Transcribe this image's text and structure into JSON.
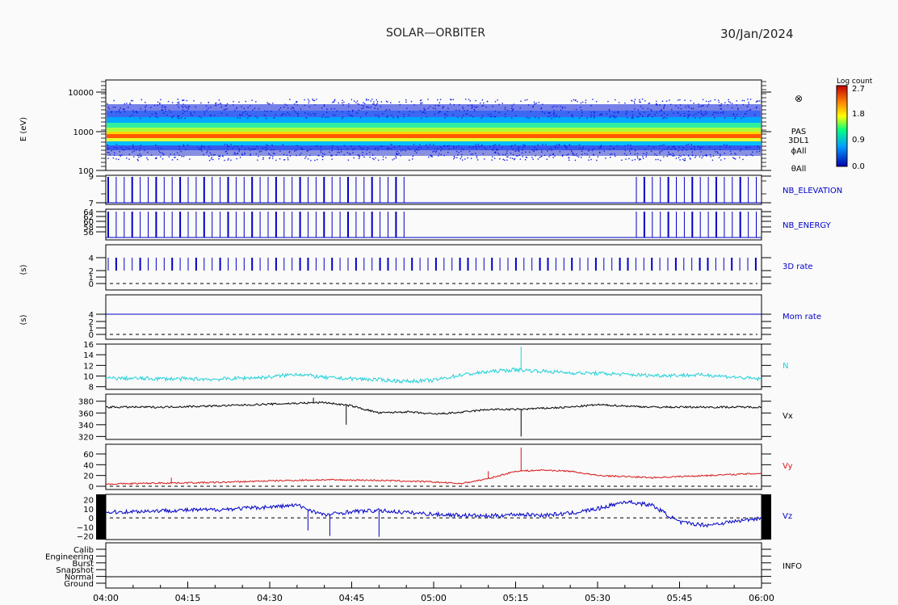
{
  "header": {
    "title": "SOLAR—ORBITER",
    "date": "30/Jan/2024"
  },
  "colors": {
    "blue": "#0000c8",
    "cyan": "#22d0d8",
    "black": "#000000",
    "red": "#d81818"
  },
  "spectrogram": {
    "ylabel": "E (eV)",
    "yticks": [
      "10000",
      "1000",
      "100"
    ],
    "labels": [
      "PAS",
      "3DL1",
      "ϕAll",
      "θAll"
    ],
    "colorbar": {
      "title": "Log count",
      "ticks": [
        "2.7",
        "1.8",
        "0.9",
        "0.0"
      ]
    }
  },
  "chart_data": {
    "type": "line",
    "x_range": [
      "04:00",
      "06:00"
    ],
    "x_ticks": [
      "04:00",
      "04:15",
      "04:30",
      "04:45",
      "05:00",
      "05:15",
      "05:30",
      "05:45",
      "06:00"
    ],
    "panels": [
      {
        "name": "NB_ELEVATION",
        "yticks": [
          "9",
          "7"
        ],
        "kind": "ticks",
        "color": "#0000c8"
      },
      {
        "name": "NB_ENERGY",
        "yticks": [
          "64",
          "62",
          "60",
          "58",
          "56"
        ],
        "kind": "ticks",
        "color": "#0000c8"
      },
      {
        "name": "3D rate",
        "ylabel": "(s)",
        "yticks": [
          "4",
          "2",
          "1",
          "0"
        ],
        "ylim": [
          0,
          4
        ],
        "kind": "ticks",
        "color": "#0000c8"
      },
      {
        "name": "Mom rate",
        "ylabel": "(s)",
        "yticks": [
          "4",
          "2",
          "1",
          "0"
        ],
        "ylim": [
          0,
          4
        ],
        "value": 4,
        "color": "#0000c8"
      },
      {
        "name": "N",
        "yticks": [
          "16",
          "14",
          "12",
          "10",
          "8"
        ],
        "ylim": [
          7.5,
          16
        ],
        "color": "#22d0d8",
        "x": [
          "04:00",
          "04:10",
          "04:20",
          "04:30",
          "04:35",
          "04:40",
          "04:50",
          "04:55",
          "05:00",
          "05:05",
          "05:10",
          "05:15",
          "05:20",
          "05:25",
          "05:30",
          "05:40",
          "05:50",
          "06:00"
        ],
        "y": [
          9.6,
          9.5,
          9.4,
          9.8,
          10.4,
          9.7,
          9.3,
          9.0,
          9.2,
          10.2,
          10.8,
          11.2,
          10.9,
          10.6,
          10.5,
          10.1,
          10.2,
          9.4
        ]
      },
      {
        "name": "Vx",
        "yticks": [
          "380",
          "360",
          "340",
          "320"
        ],
        "ylim": [
          315,
          392
        ],
        "color": "#000000",
        "x": [
          "04:00",
          "04:10",
          "04:20",
          "04:30",
          "04:40",
          "04:45",
          "04:50",
          "04:55",
          "05:00",
          "05:05",
          "05:10",
          "05:15",
          "05:20",
          "05:25",
          "05:30",
          "05:40",
          "05:50",
          "06:00"
        ],
        "y": [
          370,
          370,
          372,
          375,
          378,
          372,
          360,
          362,
          358,
          361,
          366,
          366,
          368,
          370,
          374,
          370,
          370,
          370
        ]
      },
      {
        "name": "Vy",
        "yticks": [
          "60",
          "40",
          "20",
          "0"
        ],
        "ylim": [
          -6,
          78
        ],
        "color": "#d81818",
        "x": [
          "04:00",
          "04:10",
          "04:20",
          "04:30",
          "04:40",
          "04:50",
          "05:00",
          "05:05",
          "05:10",
          "05:15",
          "05:20",
          "05:25",
          "05:30",
          "05:40",
          "05:50",
          "06:00"
        ],
        "y": [
          4,
          6,
          7,
          10,
          12,
          11,
          8,
          5,
          14,
          28,
          30,
          28,
          20,
          16,
          20,
          24
        ]
      },
      {
        "name": "Vz",
        "yticks": [
          "20",
          "10",
          "0",
          "−10",
          "−20"
        ],
        "ylim": [
          -24,
          26
        ],
        "color": "#0000c8",
        "x": [
          "04:00",
          "04:10",
          "04:20",
          "04:30",
          "04:35",
          "04:40",
          "04:45",
          "04:50",
          "05:00",
          "05:10",
          "05:15",
          "05:20",
          "05:25",
          "05:30",
          "05:35",
          "05:40",
          "05:45",
          "05:50",
          "06:00"
        ],
        "y": [
          6,
          8,
          9,
          12,
          14,
          3,
          7,
          8,
          4,
          2,
          4,
          3,
          5,
          10,
          18,
          14,
          -5,
          -8,
          0
        ]
      },
      {
        "name": "INFO",
        "yticks": [
          "Calib",
          "Engineering",
          "Burst",
          "Snapshot",
          "Normal",
          "Ground"
        ]
      }
    ]
  }
}
